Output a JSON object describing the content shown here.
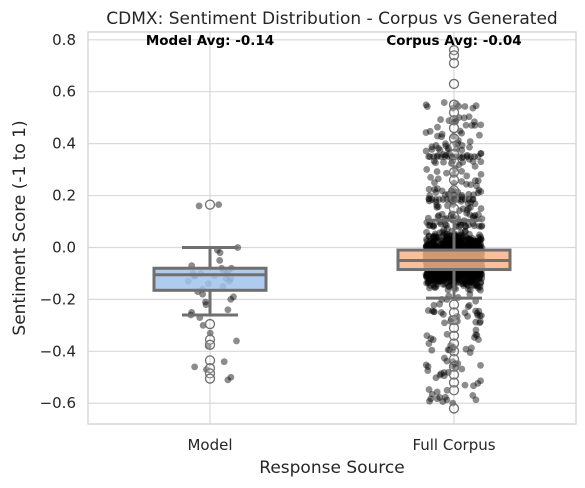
{
  "chart_data": {
    "type": "box",
    "title": "CDMX: Sentiment Distribution - Corpus vs Generated",
    "xlabel": "Response Source",
    "ylabel": "Sentiment Score (-1 to 1)",
    "ylim": [
      -0.68,
      0.83
    ],
    "yticks": [
      "0.8",
      "0.6",
      "0.4",
      "0.2",
      "0.0",
      "−0.2",
      "−0.4",
      "−0.6"
    ],
    "ytick_values": [
      0.8,
      0.6,
      0.4,
      0.2,
      0.0,
      -0.2,
      -0.4,
      -0.6
    ],
    "grid": true,
    "categories": [
      "Model",
      "Full Corpus"
    ],
    "boxes": [
      {
        "name": "Model",
        "color": "#a1c3ec",
        "q1": -0.165,
        "median": -0.105,
        "q3": -0.08,
        "whisker_low": -0.26,
        "whisker_high": 0.0,
        "fliers": [
          0.165,
          -0.295,
          -0.355,
          -0.375,
          -0.435,
          -0.465,
          -0.485,
          -0.505
        ],
        "annotation": "Model Avg: -0.14"
      },
      {
        "name": "Full Corpus",
        "color": "#f6b48a",
        "q1": -0.085,
        "median": -0.05,
        "q3": -0.01,
        "whisker_low": -0.195,
        "whisker_high": 0.105,
        "fliers": [
          0.76,
          0.74,
          0.71,
          0.63,
          0.55,
          0.52,
          0.49,
          0.46,
          0.42,
          0.39,
          0.36,
          0.33,
          0.29,
          0.26,
          0.22,
          0.19,
          0.15,
          0.12,
          -0.22,
          -0.25,
          -0.28,
          -0.31,
          -0.34,
          -0.37,
          -0.4,
          -0.43,
          -0.46,
          -0.49,
          -0.52,
          -0.55,
          -0.62
        ],
        "annotation": "Corpus Avg: -0.04"
      }
    ],
    "strip_points": [
      {
        "name": "Model",
        "y": [
          0.165,
          0.16,
          -0.01,
          0.0,
          -0.02,
          -0.05,
          -0.07,
          -0.08,
          -0.08,
          -0.09,
          -0.09,
          -0.1,
          -0.1,
          -0.1,
          -0.11,
          -0.11,
          -0.11,
          -0.12,
          -0.12,
          -0.13,
          -0.13,
          -0.14,
          -0.15,
          -0.16,
          -0.17,
          -0.18,
          -0.19,
          -0.2,
          -0.21,
          -0.22,
          -0.24,
          -0.25,
          -0.26,
          -0.27,
          -0.3,
          -0.33,
          -0.36,
          -0.38,
          -0.44,
          -0.46,
          -0.47,
          -0.5,
          -0.51
        ]
      }
    ]
  }
}
